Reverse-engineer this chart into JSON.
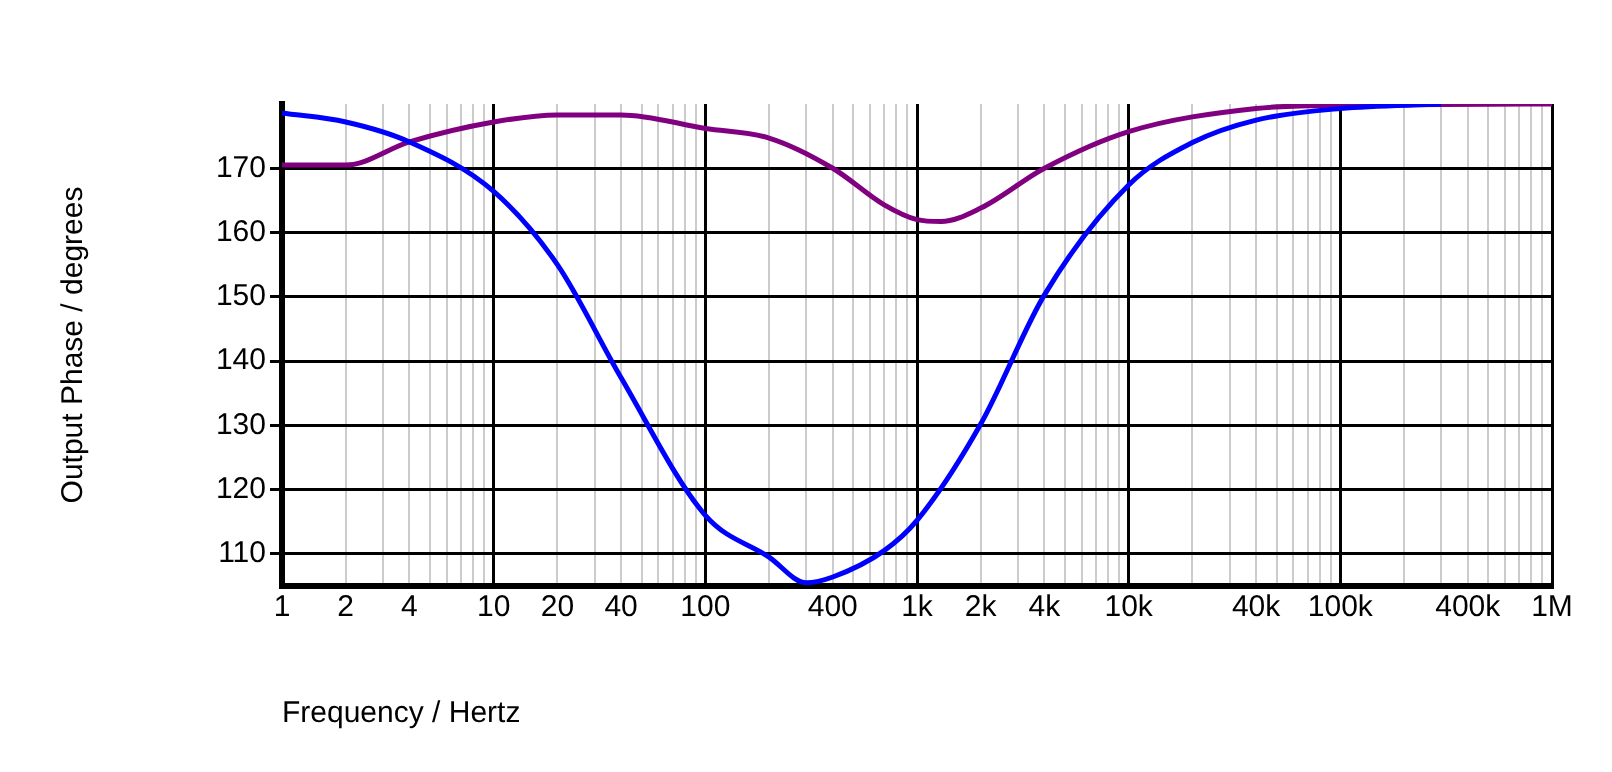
{
  "chart_data": {
    "type": "line",
    "xlabel": "Frequency / Hertz",
    "ylabel": "Output Phase / degrees",
    "log": "x",
    "grid": true,
    "legend": false,
    "xlim": [
      1,
      1000000
    ],
    "ylim": [
      105,
      180
    ],
    "xticks": [
      1,
      2,
      {
        "value": 3,
        "label": null
      },
      4,
      {
        "value": 5,
        "label": null
      },
      {
        "value": 6,
        "label": null
      },
      {
        "value": 7,
        "label": null
      },
      {
        "value": 8,
        "label": null
      },
      {
        "value": 9,
        "label": null
      },
      10,
      20,
      {
        "value": 30,
        "label": null
      },
      40,
      {
        "value": 50,
        "label": null
      },
      {
        "value": 60,
        "label": null
      },
      {
        "value": 70,
        "label": null
      },
      {
        "value": 80,
        "label": null
      },
      {
        "value": 90,
        "label": null
      },
      100,
      {
        "value": 200,
        "label": null
      },
      {
        "value": 300,
        "label": null
      },
      400,
      {
        "value": 500,
        "label": null
      },
      {
        "value": 600,
        "label": null
      },
      {
        "value": 700,
        "label": null
      },
      {
        "value": 800,
        "label": null
      },
      {
        "value": 900,
        "label": null
      },
      {
        "value": 1000,
        "label": "1k"
      },
      {
        "value": 2000,
        "label": "2k"
      },
      {
        "value": 3000,
        "label": null
      },
      {
        "value": 4000,
        "label": "4k"
      },
      {
        "value": 5000,
        "label": null
      },
      {
        "value": 6000,
        "label": null
      },
      {
        "value": 7000,
        "label": null
      },
      {
        "value": 8000,
        "label": null
      },
      {
        "value": 9000,
        "label": null
      },
      {
        "value": 10000,
        "label": "10k"
      },
      {
        "value": 20000,
        "label": null
      },
      {
        "value": 30000,
        "label": null
      },
      {
        "value": 40000,
        "label": "40k"
      },
      {
        "value": 50000,
        "label": null
      },
      {
        "value": 60000,
        "label": null
      },
      {
        "value": 70000,
        "label": null
      },
      {
        "value": 80000,
        "label": null
      },
      {
        "value": 90000,
        "label": null
      },
      {
        "value": 100000,
        "label": "100k"
      },
      {
        "value": 200000,
        "label": null
      },
      {
        "value": 300000,
        "label": null
      },
      {
        "value": 400000,
        "label": "400k"
      },
      {
        "value": 500000,
        "label": null
      },
      {
        "value": 600000,
        "label": null
      },
      {
        "value": 700000,
        "label": null
      },
      {
        "value": 800000,
        "label": null
      },
      {
        "value": 900000,
        "label": null
      },
      {
        "value": 1000000,
        "label": "1M"
      }
    ],
    "yticks": [
      110,
      120,
      130,
      140,
      150,
      160,
      170
    ],
    "series": [
      {
        "color": "#0000ff",
        "x": [
          1,
          2,
          4,
          10,
          20,
          40,
          100,
          200,
          300,
          400,
          700,
          1000,
          2000,
          4000,
          10000,
          20000,
          40000,
          100000,
          300000
        ],
        "values": [
          178.6,
          177.2,
          174.1,
          166.4,
          155,
          137.4,
          116,
          109.5,
          105.5,
          106.4,
          110.5,
          115.2,
          130.2,
          150.3,
          167.4,
          174,
          177.5,
          179.3,
          180
        ]
      },
      {
        "color": "#800080",
        "x": [
          1,
          2,
          4,
          10,
          20,
          40,
          100,
          200,
          400,
          700,
          1000,
          1300,
          2000,
          4000,
          10000,
          40000,
          100000,
          1000000
        ],
        "values": [
          170.5,
          170.5,
          174.1,
          177.2,
          178.3,
          178.3,
          176.2,
          174.7,
          170,
          164.3,
          162,
          161.7,
          163.8,
          170,
          175.7,
          179.3,
          179.8,
          180
        ]
      }
    ]
  }
}
